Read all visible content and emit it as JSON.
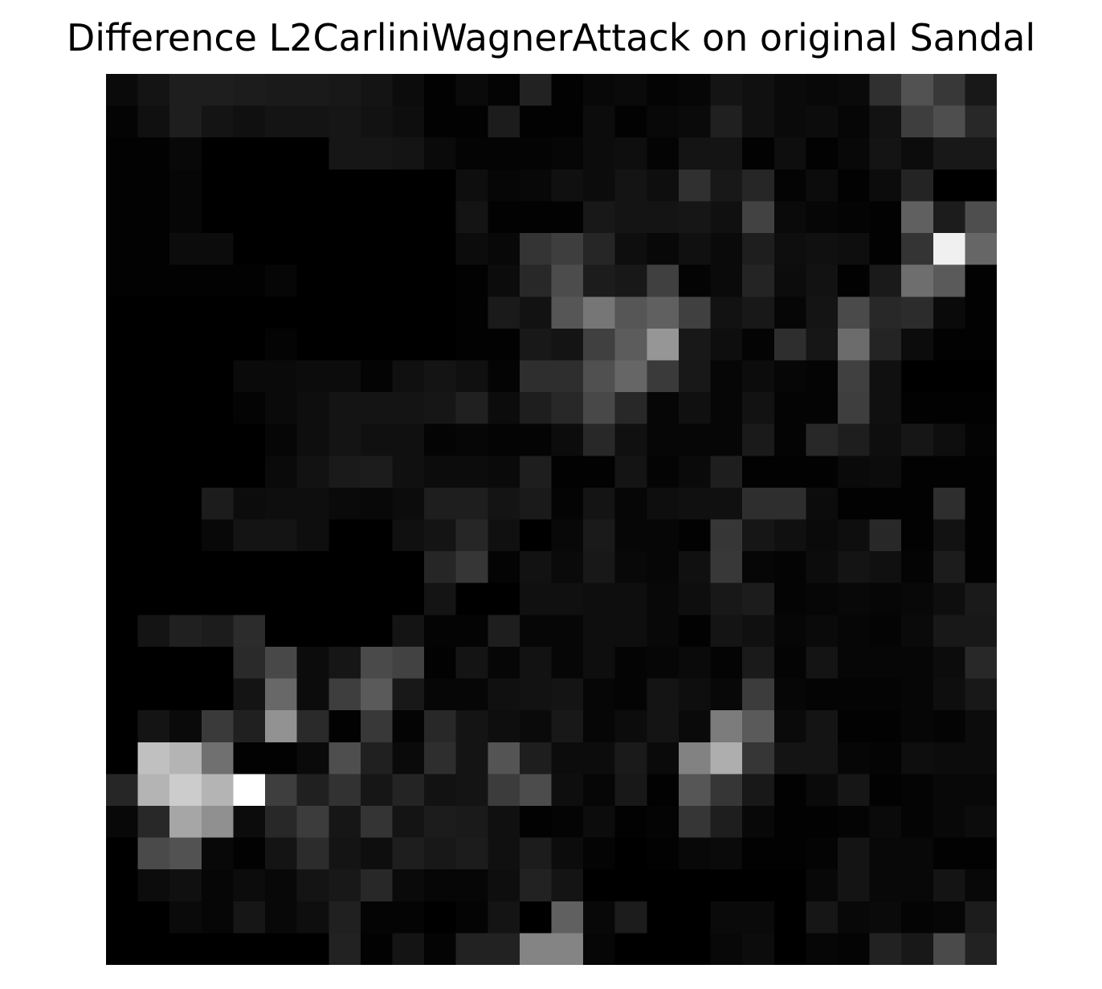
{
  "chart_data": {
    "type": "heatmap",
    "title": "Difference L2CarliniWagnerAttack on original Sandal",
    "colormap": "gray",
    "axes_visible": false,
    "xlabel": "",
    "ylabel": "",
    "rows": 28,
    "cols": 28,
    "value_range": [
      0,
      255
    ],
    "values": [
      [
        10,
        20,
        30,
        30,
        28,
        26,
        26,
        24,
        20,
        12,
        2,
        10,
        4,
        34,
        2,
        8,
        10,
        4,
        6,
        20,
        16,
        10,
        8,
        10,
        48,
        82,
        56,
        24
      ],
      [
        4,
        16,
        30,
        20,
        16,
        20,
        20,
        22,
        18,
        14,
        2,
        2,
        28,
        2,
        2,
        12,
        2,
        8,
        10,
        32,
        16,
        10,
        12,
        6,
        18,
        62,
        78,
        40
      ],
      [
        2,
        2,
        8,
        0,
        0,
        0,
        0,
        22,
        22,
        20,
        10,
        4,
        4,
        4,
        6,
        12,
        14,
        4,
        20,
        20,
        2,
        14,
        2,
        8,
        20,
        12,
        24,
        24
      ],
      [
        2,
        2,
        6,
        0,
        0,
        0,
        0,
        0,
        0,
        0,
        0,
        14,
        6,
        8,
        16,
        12,
        20,
        14,
        48,
        24,
        38,
        4,
        12,
        2,
        12,
        36,
        0,
        0
      ],
      [
        2,
        2,
        6,
        0,
        0,
        0,
        0,
        0,
        0,
        0,
        0,
        20,
        2,
        2,
        2,
        24,
        20,
        20,
        22,
        16,
        66,
        10,
        6,
        4,
        2,
        96,
        28,
        78
      ],
      [
        2,
        2,
        12,
        12,
        0,
        0,
        0,
        0,
        0,
        0,
        0,
        12,
        8,
        52,
        62,
        38,
        14,
        8,
        16,
        10,
        30,
        14,
        16,
        14,
        2,
        52,
        240,
        102
      ],
      [
        2,
        2,
        2,
        2,
        2,
        6,
        0,
        0,
        0,
        0,
        0,
        2,
        12,
        40,
        76,
        28,
        24,
        64,
        4,
        10,
        36,
        12,
        18,
        2,
        26,
        110,
        90,
        2
      ],
      [
        0,
        0,
        0,
        0,
        0,
        0,
        0,
        0,
        0,
        0,
        0,
        2,
        26,
        18,
        86,
        118,
        86,
        96,
        64,
        18,
        24,
        6,
        20,
        74,
        40,
        44,
        10,
        2
      ],
      [
        0,
        0,
        0,
        0,
        0,
        4,
        0,
        0,
        0,
        0,
        0,
        2,
        2,
        24,
        20,
        64,
        92,
        150,
        24,
        14,
        4,
        46,
        22,
        108,
        36,
        12,
        2,
        2
      ],
      [
        0,
        0,
        0,
        0,
        10,
        10,
        12,
        12,
        4,
        16,
        20,
        16,
        4,
        46,
        46,
        80,
        102,
        58,
        24,
        6,
        12,
        6,
        4,
        64,
        16,
        0,
        0,
        0
      ],
      [
        0,
        0,
        0,
        0,
        4,
        10,
        14,
        20,
        20,
        20,
        22,
        32,
        12,
        30,
        40,
        72,
        40,
        6,
        16,
        6,
        18,
        4,
        4,
        62,
        16,
        2,
        2,
        2
      ],
      [
        0,
        0,
        0,
        0,
        0,
        6,
        14,
        20,
        16,
        16,
        4,
        6,
        4,
        4,
        12,
        40,
        16,
        6,
        6,
        6,
        26,
        4,
        40,
        30,
        14,
        22,
        14,
        4
      ],
      [
        0,
        0,
        0,
        0,
        0,
        10,
        18,
        26,
        28,
        16,
        12,
        12,
        10,
        30,
        2,
        2,
        20,
        4,
        10,
        30,
        2,
        2,
        2,
        10,
        12,
        2,
        2,
        2
      ],
      [
        0,
        0,
        0,
        28,
        12,
        14,
        14,
        10,
        8,
        12,
        30,
        30,
        20,
        26,
        4,
        20,
        6,
        14,
        16,
        16,
        46,
        46,
        12,
        2,
        2,
        2,
        46,
        2
      ],
      [
        0,
        0,
        0,
        8,
        20,
        20,
        14,
        0,
        0,
        16,
        20,
        38,
        16,
        0,
        8,
        26,
        6,
        6,
        2,
        54,
        22,
        16,
        10,
        14,
        40,
        2,
        18,
        2
      ],
      [
        0,
        0,
        0,
        0,
        0,
        0,
        0,
        0,
        0,
        0,
        38,
        54,
        4,
        18,
        10,
        24,
        8,
        6,
        16,
        56,
        6,
        4,
        12,
        20,
        16,
        4,
        28,
        2
      ],
      [
        0,
        0,
        0,
        0,
        0,
        0,
        0,
        0,
        0,
        0,
        20,
        0,
        0,
        16,
        16,
        14,
        14,
        8,
        14,
        24,
        28,
        4,
        6,
        8,
        6,
        8,
        14,
        26
      ],
      [
        0,
        20,
        32,
        28,
        44,
        0,
        0,
        0,
        0,
        20,
        4,
        4,
        30,
        6,
        6,
        14,
        14,
        8,
        2,
        20,
        16,
        6,
        10,
        6,
        4,
        10,
        24,
        24
      ],
      [
        0,
        0,
        0,
        0,
        42,
        72,
        12,
        22,
        74,
        66,
        2,
        20,
        6,
        18,
        6,
        14,
        4,
        6,
        10,
        4,
        26,
        4,
        20,
        6,
        6,
        6,
        12,
        40
      ],
      [
        0,
        0,
        0,
        0,
        20,
        104,
        12,
        62,
        90,
        24,
        6,
        6,
        16,
        18,
        20,
        6,
        4,
        20,
        14,
        8,
        60,
        6,
        4,
        4,
        4,
        6,
        14,
        24
      ],
      [
        0,
        20,
        10,
        58,
        32,
        146,
        42,
        2,
        56,
        4,
        40,
        20,
        14,
        10,
        24,
        6,
        12,
        20,
        10,
        124,
        90,
        10,
        20,
        2,
        2,
        6,
        4,
        12
      ],
      [
        0,
        192,
        180,
        112,
        2,
        2,
        10,
        78,
        32,
        10,
        46,
        20,
        84,
        30,
        12,
        12,
        26,
        10,
        130,
        174,
        54,
        20,
        20,
        6,
        4,
        14,
        12,
        12
      ],
      [
        38,
        180,
        204,
        180,
        255,
        62,
        32,
        50,
        22,
        36,
        18,
        20,
        60,
        76,
        14,
        6,
        24,
        2,
        86,
        54,
        24,
        2,
        10,
        22,
        2,
        4,
        8,
        8
      ],
      [
        8,
        40,
        166,
        144,
        12,
        40,
        60,
        22,
        52,
        20,
        28,
        26,
        16,
        2,
        4,
        12,
        2,
        4,
        54,
        30,
        8,
        2,
        2,
        4,
        10,
        4,
        8,
        12
      ],
      [
        0,
        74,
        82,
        8,
        2,
        20,
        44,
        20,
        14,
        30,
        24,
        28,
        16,
        28,
        12,
        4,
        0,
        2,
        8,
        10,
        2,
        2,
        4,
        20,
        8,
        8,
        2,
        2
      ],
      [
        0,
        12,
        16,
        6,
        12,
        8,
        20,
        24,
        40,
        10,
        6,
        6,
        14,
        34,
        20,
        0,
        0,
        0,
        0,
        0,
        0,
        0,
        8,
        20,
        8,
        8,
        20,
        8
      ],
      [
        0,
        0,
        10,
        6,
        22,
        8,
        14,
        32,
        4,
        4,
        0,
        4,
        20,
        0,
        96,
        8,
        28,
        0,
        0,
        10,
        10,
        0,
        22,
        8,
        10,
        4,
        6,
        28
      ],
      [
        0,
        0,
        0,
        0,
        0,
        0,
        0,
        34,
        2,
        20,
        4,
        34,
        34,
        132,
        132,
        6,
        0,
        0,
        0,
        8,
        12,
        0,
        6,
        4,
        34,
        24,
        74,
        34
      ]
    ]
  }
}
